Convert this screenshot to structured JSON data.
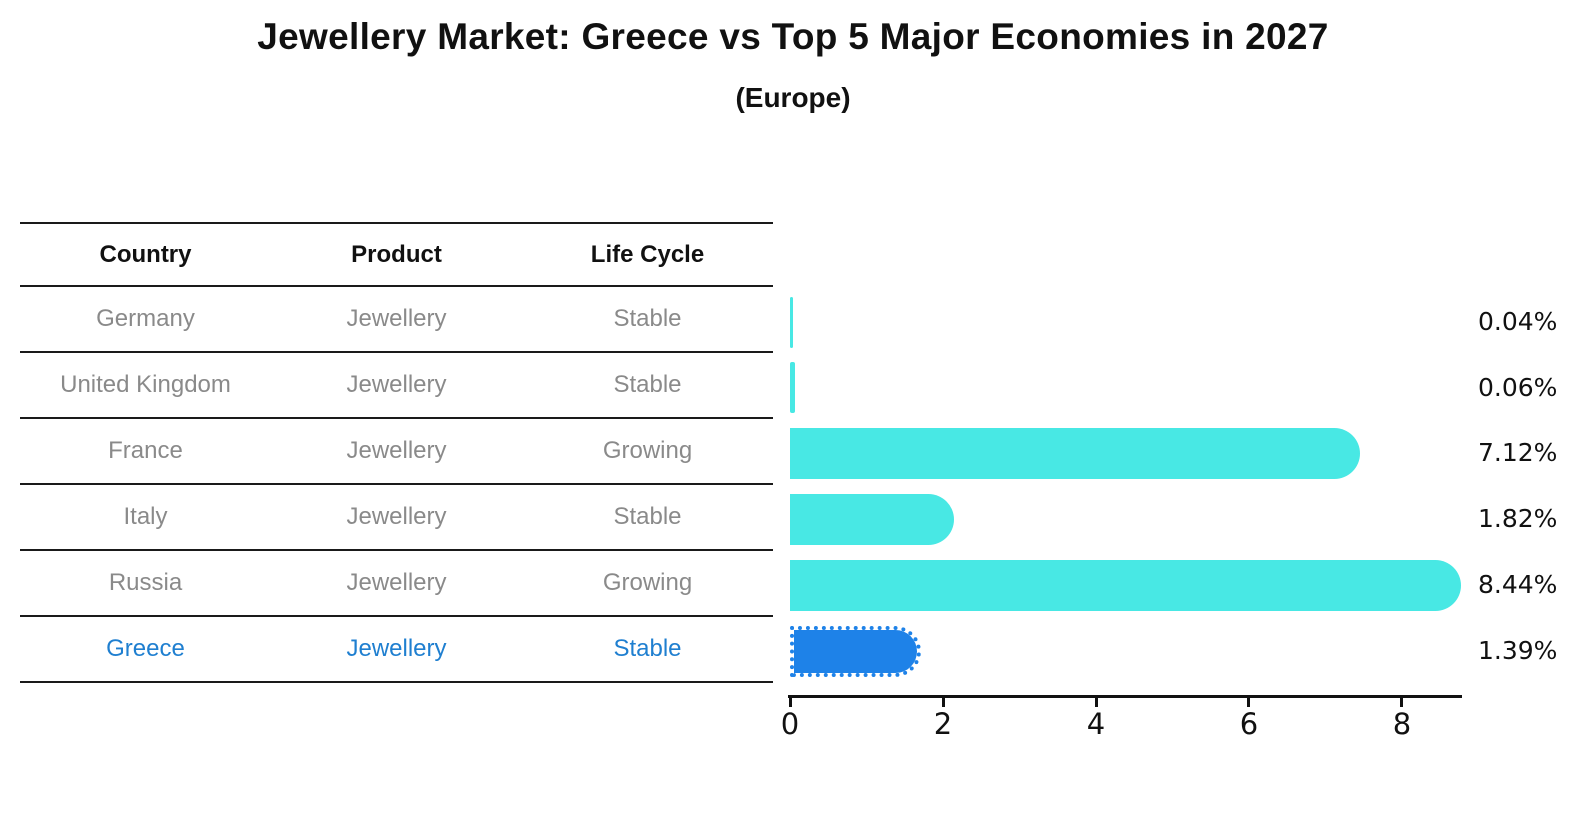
{
  "title": "Jewellery Market: Greece vs Top 5 Major Economies in 2027",
  "subtitle": "(Europe)",
  "table": {
    "headers": [
      "Country",
      "Product",
      "Life Cycle"
    ],
    "rows": [
      {
        "country": "Germany",
        "product": "Jewellery",
        "life_cycle": "Stable"
      },
      {
        "country": "United Kingdom",
        "product": "Jewellery",
        "life_cycle": "Stable"
      },
      {
        "country": "France",
        "product": "Jewellery",
        "life_cycle": "Growing"
      },
      {
        "country": "Italy",
        "product": "Jewellery",
        "life_cycle": "Stable"
      },
      {
        "country": "Russia",
        "product": "Jewellery",
        "life_cycle": "Growing"
      },
      {
        "country": "Greece",
        "product": "Jewellery",
        "life_cycle": "Stable"
      }
    ],
    "highlight_row": "Greece"
  },
  "chart_data": {
    "type": "bar",
    "orientation": "horizontal",
    "title": "Jewellery Market: Greece vs Top 5 Major Economies in 2027",
    "subtitle": "(Europe)",
    "categories": [
      "Germany",
      "United Kingdom",
      "France",
      "Italy",
      "Russia",
      "Greece"
    ],
    "values": [
      0.04,
      0.06,
      7.12,
      1.82,
      8.44,
      1.39
    ],
    "value_labels": [
      "0.04%",
      "0.06%",
      "7.12%",
      "1.82%",
      "8.44%",
      "1.39%"
    ],
    "x_ticks": [
      "0",
      "2",
      "4",
      "6",
      "8"
    ],
    "xlim": [
      0,
      8.8
    ],
    "grid": false,
    "legend": false,
    "highlight_index": 5,
    "bar_color": "#48E8E4",
    "highlight_bar_color": "#1E82E8",
    "highlight_text_color": "#1F7FD0",
    "table_text_color": "#8A8A8A"
  }
}
